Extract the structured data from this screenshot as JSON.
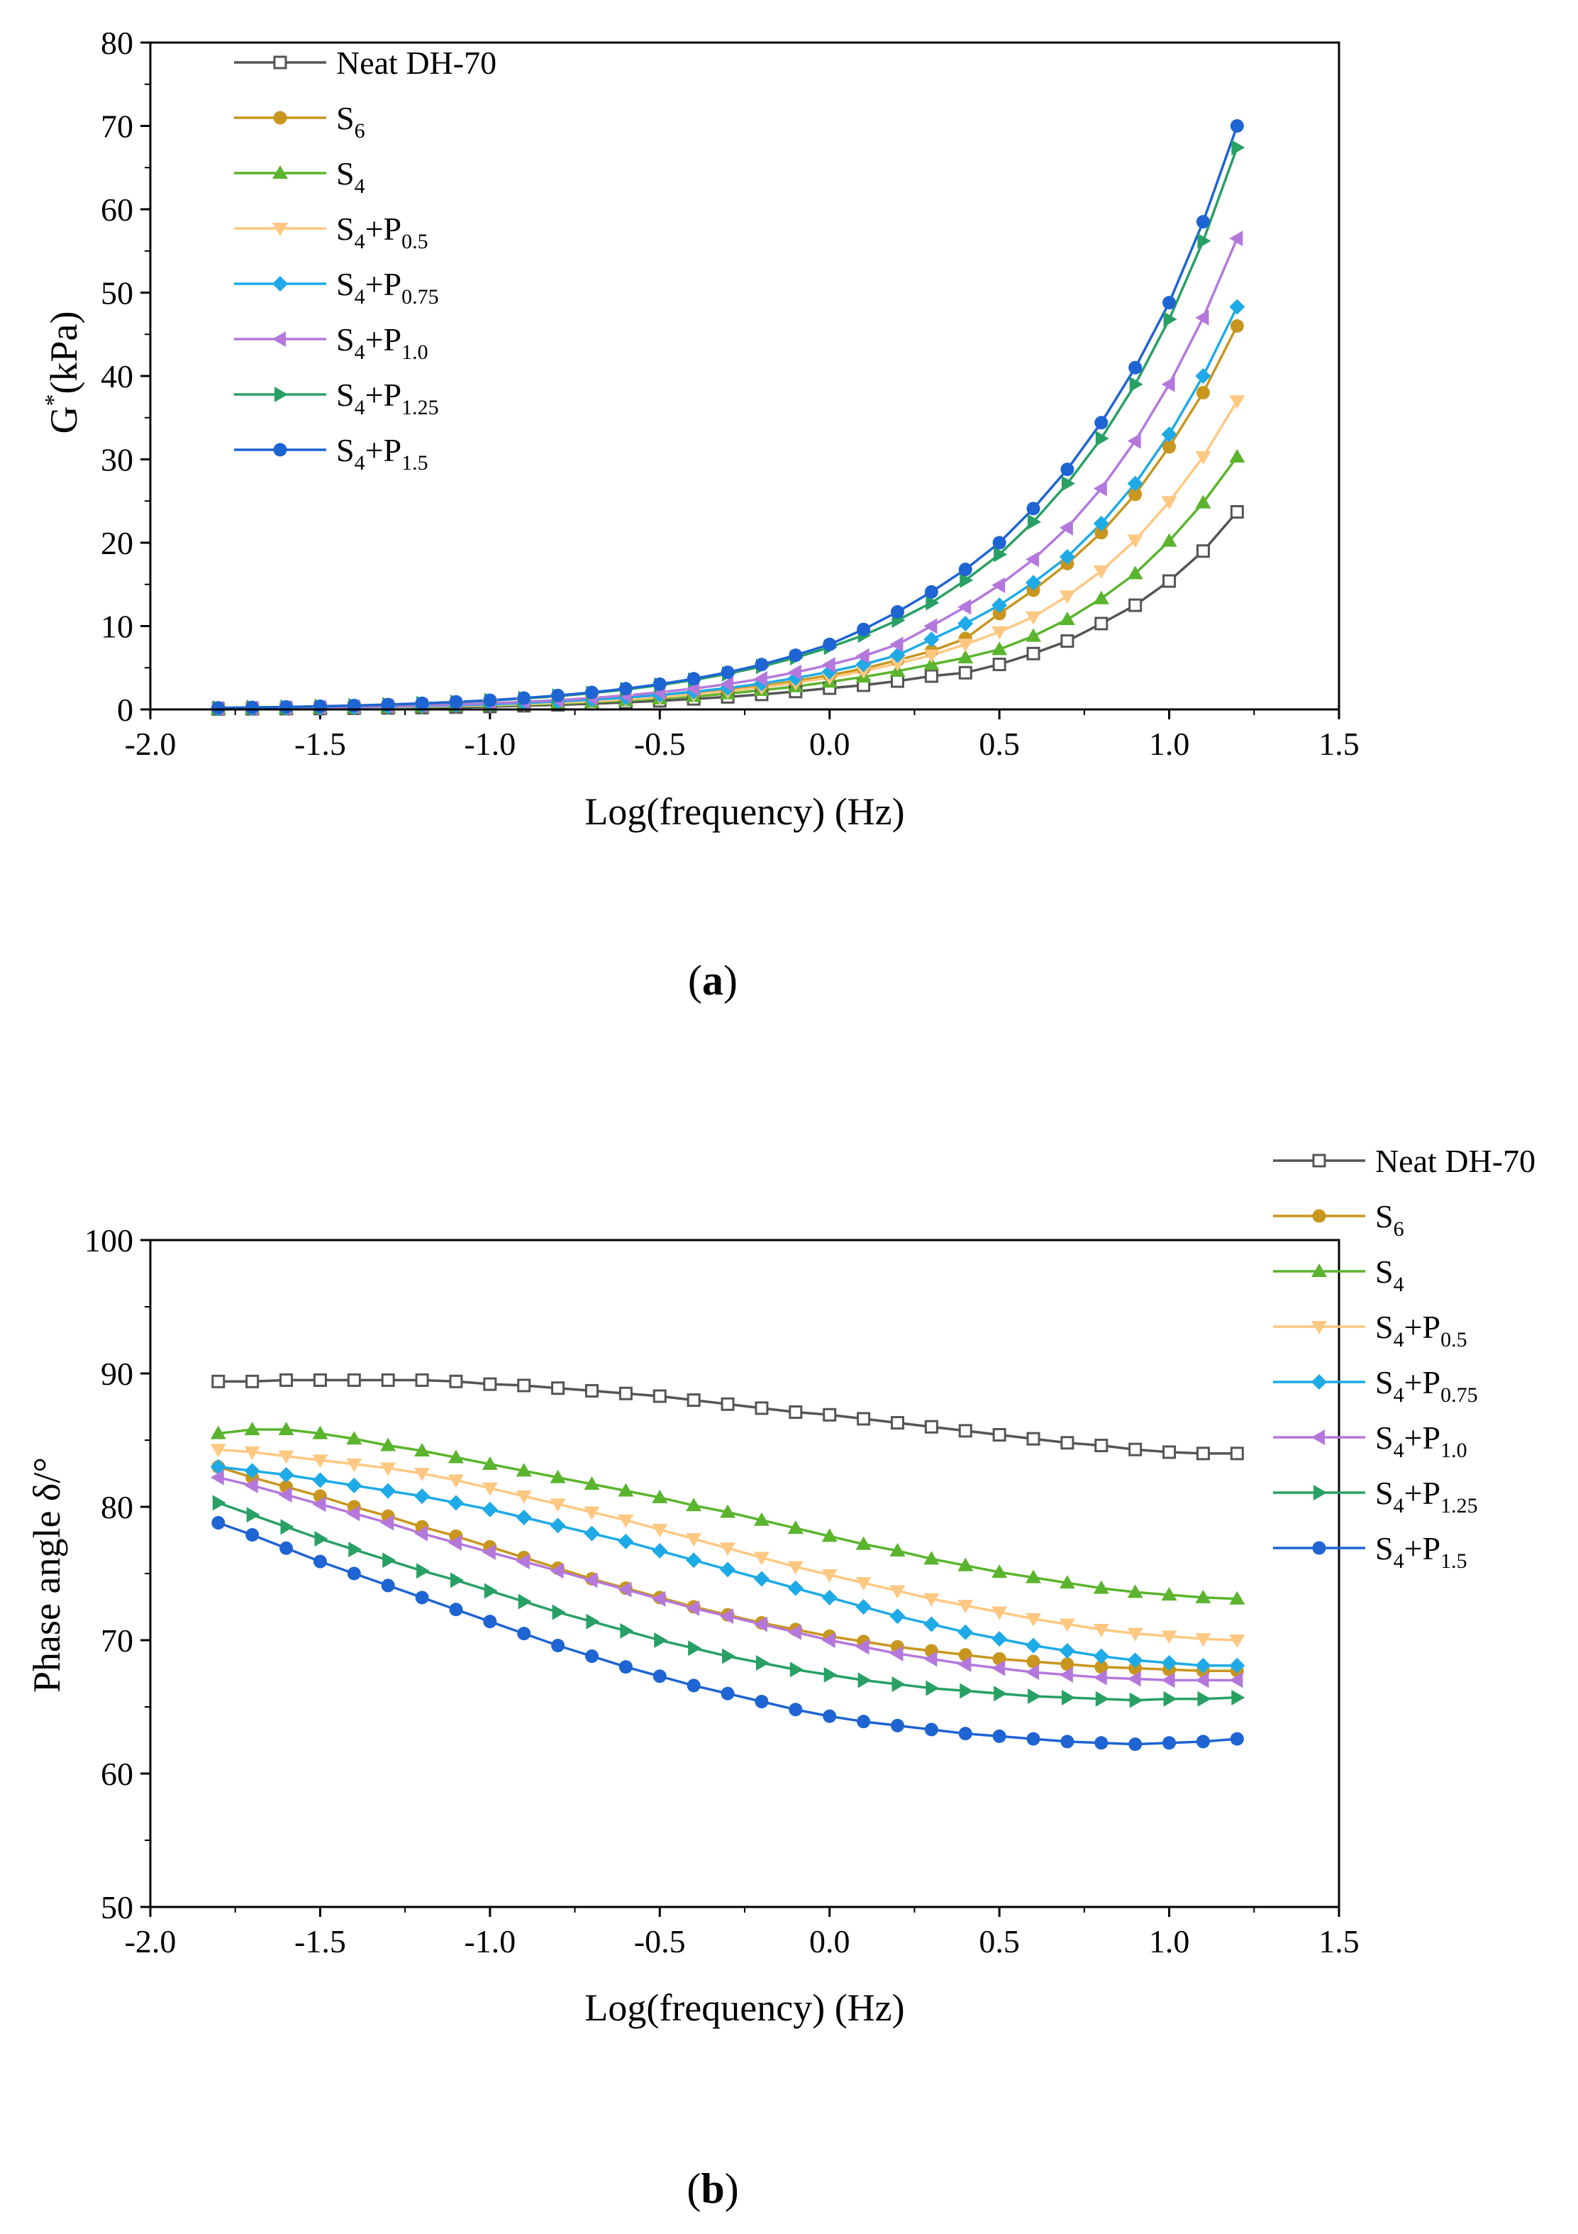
{
  "chart_data": [
    {
      "id": "a",
      "type": "line",
      "panel_label": {
        "open": "(",
        "letter": "a",
        "close": ")"
      },
      "xlabel": "Log(frequency) (Hz)",
      "ylabel": "G*(kPa)",
      "ylabel_parts": {
        "base": "G",
        "sup": "*",
        "rest": "(kPa)"
      },
      "xlim": [
        -2.0,
        1.5
      ],
      "ylim": [
        0,
        80
      ],
      "xticks": [
        -2.0,
        -1.5,
        -1.0,
        -0.5,
        0.0,
        0.5,
        1.0,
        1.5
      ],
      "xtick_labels": [
        "-2.0",
        "-1.5",
        "-1.0",
        "-0.5",
        "0.0",
        "0.5",
        "1.0",
        "1.5"
      ],
      "yticks": [
        0,
        10,
        20,
        30,
        40,
        50,
        60,
        70,
        80
      ],
      "ytick_labels": [
        "0",
        "10",
        "20",
        "30",
        "40",
        "50",
        "60",
        "70",
        "80"
      ],
      "legend_position": "top-left",
      "x": [
        -1.8,
        -1.7,
        -1.6,
        -1.5,
        -1.4,
        -1.3,
        -1.2,
        -1.1,
        -1.0,
        -0.9,
        -0.8,
        -0.7,
        -0.6,
        -0.5,
        -0.4,
        -0.3,
        -0.2,
        -0.1,
        0.0,
        0.1,
        0.2,
        0.3,
        0.4,
        0.5,
        0.6,
        0.7,
        0.8,
        0.9,
        1.0,
        1.1,
        1.2
      ],
      "series": [
        {
          "name": "Neat DH-70",
          "label": {
            "main": "Neat DH-70",
            "sub": "",
            "tail": ""
          },
          "color": "#555555",
          "marker": "square-open",
          "values": [
            0.05,
            0.07,
            0.09,
            0.11,
            0.14,
            0.18,
            0.22,
            0.28,
            0.35,
            0.44,
            0.55,
            0.68,
            0.84,
            1.03,
            1.26,
            1.5,
            1.8,
            2.15,
            2.55,
            2.9,
            3.4,
            4.0,
            4.4,
            5.4,
            6.7,
            8.2,
            10.3,
            12.5,
            15.4,
            19.0,
            23.7
          ]
        },
        {
          "name": "S6",
          "label": {
            "main": "S",
            "sub": "6",
            "tail": ""
          },
          "color": "#C8961E",
          "marker": "circle",
          "values": [
            0.09,
            0.12,
            0.15,
            0.19,
            0.24,
            0.3,
            0.37,
            0.46,
            0.57,
            0.7,
            0.86,
            1.05,
            1.28,
            1.56,
            1.9,
            2.3,
            2.8,
            3.4,
            4.1,
            4.9,
            5.9,
            7.0,
            8.5,
            11.5,
            14.3,
            17.5,
            21.2,
            25.8,
            31.5,
            38.0,
            46.0
          ]
        },
        {
          "name": "S4",
          "label": {
            "main": "S",
            "sub": "4",
            "tail": ""
          },
          "color": "#5AB42D",
          "marker": "triangle-up",
          "values": [
            0.08,
            0.1,
            0.13,
            0.16,
            0.2,
            0.25,
            0.31,
            0.38,
            0.47,
            0.58,
            0.71,
            0.87,
            1.06,
            1.29,
            1.57,
            1.9,
            2.3,
            2.75,
            3.3,
            3.9,
            4.6,
            5.4,
            6.2,
            7.2,
            8.8,
            10.8,
            13.3,
            16.3,
            20.2,
            24.8,
            30.3
          ]
        },
        {
          "name": "S4+P0.5",
          "label": {
            "main": "S",
            "sub": "4",
            "tail": "+P",
            "sub2": "0.5"
          },
          "color": "#FFC882",
          "marker": "triangle-down",
          "values": [
            0.08,
            0.11,
            0.14,
            0.18,
            0.22,
            0.28,
            0.34,
            0.42,
            0.52,
            0.65,
            0.8,
            0.98,
            1.2,
            1.47,
            1.8,
            2.18,
            2.64,
            3.18,
            3.82,
            4.6,
            5.5,
            6.5,
            7.8,
            9.3,
            11.1,
            13.6,
            16.6,
            20.3,
            24.9,
            30.3,
            37.0
          ]
        },
        {
          "name": "S4+P0.75",
          "label": {
            "main": "S",
            "sub": "4",
            "tail": "+P",
            "sub2": "0.75"
          },
          "color": "#1EAAE6",
          "marker": "diamond",
          "values": [
            0.1,
            0.13,
            0.17,
            0.21,
            0.26,
            0.33,
            0.41,
            0.5,
            0.62,
            0.77,
            0.95,
            1.17,
            1.43,
            1.74,
            2.12,
            2.57,
            3.11,
            3.75,
            4.52,
            5.4,
            6.5,
            8.4,
            10.3,
            12.5,
            15.2,
            18.3,
            22.3,
            27.1,
            33.0,
            40.0,
            48.3
          ]
        },
        {
          "name": "S4+P1.0",
          "label": {
            "main": "S",
            "sub": "4",
            "tail": "+P",
            "sub2": "1.0"
          },
          "color": "#B478DC",
          "marker": "triangle-left",
          "values": [
            0.12,
            0.15,
            0.19,
            0.24,
            0.3,
            0.38,
            0.47,
            0.59,
            0.73,
            0.9,
            1.11,
            1.37,
            1.68,
            2.05,
            2.5,
            3.04,
            3.68,
            4.45,
            5.35,
            6.4,
            7.8,
            10.0,
            12.3,
            14.9,
            18.0,
            21.8,
            26.5,
            32.2,
            39.0,
            47.0,
            56.5
          ]
        },
        {
          "name": "S4+P1.25",
          "label": {
            "main": "S",
            "sub": "4",
            "tail": "+P",
            "sub2": "1.25"
          },
          "color": "#28A064",
          "marker": "triangle-right",
          "values": [
            0.18,
            0.23,
            0.29,
            0.36,
            0.45,
            0.56,
            0.7,
            0.86,
            1.06,
            1.31,
            1.6,
            1.96,
            2.39,
            2.91,
            3.53,
            4.27,
            5.15,
            6.2,
            7.45,
            8.9,
            10.7,
            12.8,
            15.5,
            18.6,
            22.5,
            27.1,
            32.5,
            39.0,
            46.8,
            56.2,
            67.4
          ]
        },
        {
          "name": "S4+P1.5",
          "label": {
            "main": "S",
            "sub": "4",
            "tail": "+P",
            "sub2": "1.5"
          },
          "color": "#1E64D2",
          "marker": "circle",
          "values": [
            0.19,
            0.24,
            0.3,
            0.38,
            0.47,
            0.59,
            0.73,
            0.9,
            1.1,
            1.36,
            1.67,
            2.04,
            2.49,
            3.03,
            3.68,
            4.45,
            5.38,
            6.5,
            7.8,
            9.6,
            11.7,
            14.1,
            16.8,
            20.0,
            24.1,
            28.8,
            34.4,
            41.0,
            48.8,
            58.5,
            70.0
          ]
        }
      ]
    },
    {
      "id": "b",
      "type": "line",
      "panel_label": {
        "open": "(",
        "letter": "b",
        "close": ")"
      },
      "xlabel": "Log(frequency) (Hz)",
      "ylabel": "Phase angle δ/°",
      "xlim": [
        -2.0,
        1.5
      ],
      "ylim": [
        50,
        100
      ],
      "xticks": [
        -2.0,
        -1.5,
        -1.0,
        -0.5,
        0.0,
        0.5,
        1.0,
        1.5
      ],
      "xtick_labels": [
        "-2.0",
        "-1.5",
        "-1.0",
        "-0.5",
        "0.0",
        "0.5",
        "1.0",
        "1.5"
      ],
      "yticks": [
        50,
        60,
        70,
        80,
        90,
        100
      ],
      "ytick_labels": [
        "50",
        "60",
        "70",
        "80",
        "90",
        "100"
      ],
      "legend_position": "top-right (outside plot)",
      "x": [
        -1.8,
        -1.7,
        -1.6,
        -1.5,
        -1.4,
        -1.3,
        -1.2,
        -1.1,
        -1.0,
        -0.9,
        -0.8,
        -0.7,
        -0.6,
        -0.5,
        -0.4,
        -0.3,
        -0.2,
        -0.1,
        0.0,
        0.1,
        0.2,
        0.3,
        0.4,
        0.5,
        0.6,
        0.7,
        0.8,
        0.9,
        1.0,
        1.1,
        1.2
      ],
      "series": [
        {
          "name": "Neat DH-70",
          "label": {
            "main": "Neat DH-70",
            "sub": "",
            "tail": ""
          },
          "color": "#555555",
          "marker": "square-open",
          "values": [
            89.4,
            89.4,
            89.5,
            89.5,
            89.5,
            89.5,
            89.5,
            89.4,
            89.2,
            89.1,
            88.9,
            88.7,
            88.5,
            88.3,
            88.0,
            87.7,
            87.4,
            87.1,
            86.9,
            86.6,
            86.3,
            86.0,
            85.7,
            85.4,
            85.1,
            84.8,
            84.6,
            84.3,
            84.1,
            84.0,
            84.0
          ]
        },
        {
          "name": "S6",
          "label": {
            "main": "S",
            "sub": "6",
            "tail": ""
          },
          "color": "#C8961E",
          "marker": "circle",
          "values": [
            83.0,
            82.2,
            81.5,
            80.8,
            80.0,
            79.3,
            78.5,
            77.8,
            77.0,
            76.2,
            75.4,
            74.6,
            73.9,
            73.2,
            72.5,
            71.9,
            71.3,
            70.8,
            70.3,
            69.9,
            69.5,
            69.2,
            68.9,
            68.6,
            68.4,
            68.2,
            68.0,
            67.9,
            67.8,
            67.7,
            67.7
          ]
        },
        {
          "name": "S4",
          "label": {
            "main": "S",
            "sub": "4",
            "tail": ""
          },
          "color": "#5AB42D",
          "marker": "triangle-up",
          "values": [
            85.5,
            85.8,
            85.8,
            85.5,
            85.1,
            84.6,
            84.2,
            83.7,
            83.2,
            82.7,
            82.2,
            81.7,
            81.2,
            80.7,
            80.1,
            79.6,
            79.0,
            78.4,
            77.8,
            77.2,
            76.7,
            76.1,
            75.6,
            75.1,
            74.7,
            74.3,
            73.9,
            73.6,
            73.4,
            73.2,
            73.1
          ]
        },
        {
          "name": "S4+P0.5",
          "label": {
            "main": "S",
            "sub": "4",
            "tail": "+P",
            "sub2": "0.5"
          },
          "color": "#FFC882",
          "marker": "triangle-down",
          "values": [
            84.3,
            84.1,
            83.8,
            83.5,
            83.2,
            82.9,
            82.5,
            82.0,
            81.4,
            80.8,
            80.2,
            79.6,
            79.0,
            78.3,
            77.6,
            76.9,
            76.2,
            75.5,
            74.9,
            74.3,
            73.7,
            73.1,
            72.6,
            72.1,
            71.6,
            71.2,
            70.8,
            70.5,
            70.3,
            70.1,
            70.0
          ]
        },
        {
          "name": "S4+P0.75",
          "label": {
            "main": "S",
            "sub": "4",
            "tail": "+P",
            "sub2": "0.75"
          },
          "color": "#1EAAE6",
          "marker": "diamond",
          "values": [
            83.0,
            82.7,
            82.4,
            82.0,
            81.6,
            81.2,
            80.8,
            80.3,
            79.8,
            79.2,
            78.6,
            78.0,
            77.4,
            76.7,
            76.0,
            75.3,
            74.6,
            73.9,
            73.2,
            72.5,
            71.8,
            71.2,
            70.6,
            70.1,
            69.6,
            69.2,
            68.8,
            68.5,
            68.3,
            68.1,
            68.1
          ]
        },
        {
          "name": "S4+P1.0",
          "label": {
            "main": "S",
            "sub": "4",
            "tail": "+P",
            "sub2": "1.0"
          },
          "color": "#B478DC",
          "marker": "triangle-left",
          "values": [
            82.2,
            81.6,
            80.9,
            80.2,
            79.5,
            78.8,
            78.0,
            77.3,
            76.6,
            75.9,
            75.2,
            74.5,
            73.8,
            73.1,
            72.4,
            71.8,
            71.2,
            70.6,
            70.0,
            69.5,
            69.0,
            68.6,
            68.2,
            67.9,
            67.6,
            67.4,
            67.2,
            67.1,
            67.0,
            67.0,
            67.0
          ]
        },
        {
          "name": "S4+P1.25",
          "label": {
            "main": "S",
            "sub": "4",
            "tail": "+P",
            "sub2": "1.25"
          },
          "color": "#28A064",
          "marker": "triangle-right",
          "values": [
            80.3,
            79.4,
            78.5,
            77.6,
            76.8,
            76.0,
            75.2,
            74.5,
            73.7,
            72.9,
            72.1,
            71.4,
            70.7,
            70.0,
            69.4,
            68.8,
            68.3,
            67.8,
            67.4,
            67.0,
            66.7,
            66.4,
            66.2,
            66.0,
            65.8,
            65.7,
            65.6,
            65.5,
            65.6,
            65.6,
            65.7
          ]
        },
        {
          "name": "S4+P1.5",
          "label": {
            "main": "S",
            "sub": "4",
            "tail": "+P",
            "sub2": "1.5"
          },
          "color": "#1E64D2",
          "marker": "circle",
          "values": [
            78.8,
            77.9,
            76.9,
            75.9,
            75.0,
            74.1,
            73.2,
            72.3,
            71.4,
            70.5,
            69.6,
            68.8,
            68.0,
            67.3,
            66.6,
            66.0,
            65.4,
            64.8,
            64.3,
            63.9,
            63.6,
            63.3,
            63.0,
            62.8,
            62.6,
            62.4,
            62.3,
            62.2,
            62.3,
            62.4,
            62.6
          ]
        }
      ]
    }
  ]
}
